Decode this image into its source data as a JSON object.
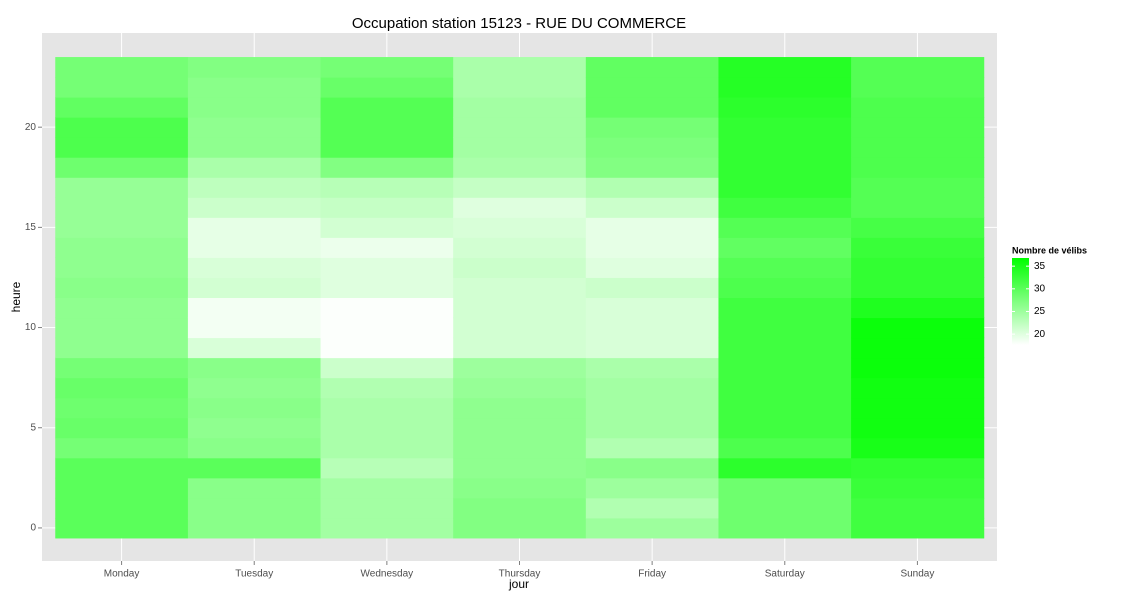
{
  "chart_data": {
    "type": "heatmap",
    "title": "Occupation station 15123 - RUE DU COMMERCE",
    "x_label": "jour",
    "y_label": "heure",
    "categories": [
      "Monday",
      "Tuesday",
      "Wednesday",
      "Thursday",
      "Friday",
      "Saturday",
      "Sunday"
    ],
    "y": [
      0,
      1,
      2,
      3,
      4,
      5,
      6,
      7,
      8,
      9,
      10,
      11,
      12,
      13,
      14,
      15,
      16,
      17,
      18,
      19,
      20,
      21,
      22,
      23
    ],
    "ylim": [
      -1.65,
      24.7
    ],
    "yticks": [
      0,
      5,
      10,
      15,
      20
    ],
    "grid": true,
    "z": [
      [
        30,
        30,
        30,
        30,
        28,
        29,
        28.5,
        29,
        28,
        26,
        26,
        26,
        26.5,
        26,
        26,
        25.5,
        25.5,
        25.5,
        28.5,
        31,
        31,
        29.5,
        28,
        28
      ],
      [
        26.5,
        26.5,
        26.5,
        30,
        26.5,
        26,
        26.5,
        26,
        26.5,
        20.5,
        18.5,
        18.5,
        21,
        20.5,
        19.5,
        19.5,
        21.5,
        22.5,
        24,
        26,
        26,
        26.5,
        26.5,
        27
      ],
      [
        24.5,
        24.5,
        24.5,
        23,
        24,
        24,
        24,
        23.5,
        21.5,
        17.8,
        17.8,
        17.8,
        20,
        20,
        19,
        21,
        22,
        23,
        27,
        30.5,
        30.5,
        30.5,
        29,
        28
      ],
      [
        27,
        27,
        26.5,
        26,
        26,
        26,
        26,
        25.5,
        25,
        21,
        21,
        21,
        21,
        21.5,
        21,
        20.5,
        20,
        22,
        24,
        24.5,
        24.5,
        24.5,
        24,
        24
      ],
      [
        25,
        23.5,
        25,
        26.5,
        23.5,
        24.5,
        24.5,
        24.5,
        24,
        20.5,
        20.5,
        20.5,
        21.5,
        20,
        19.5,
        19.5,
        21.5,
        23.5,
        27,
        27.5,
        28,
        29.5,
        29.5,
        29.5
      ],
      [
        28.5,
        28.5,
        28.5,
        33.5,
        31,
        32,
        32,
        32,
        32,
        32,
        32,
        32,
        31,
        30.5,
        29.5,
        30.5,
        32,
        33,
        33,
        33,
        33,
        33.5,
        34,
        34
      ],
      [
        32,
        32,
        32.5,
        33,
        35,
        35.5,
        35.5,
        35.5,
        36,
        36,
        36,
        34.5,
        33,
        33,
        32.5,
        31.5,
        30.5,
        30.5,
        31,
        31,
        31,
        31,
        30.5,
        30.5
      ]
    ],
    "legend_title": "Nombre de vélibs",
    "legend": "right",
    "clim": [
      17.6,
      36.8
    ],
    "cticks": [
      20,
      25,
      30,
      35
    ],
    "low_color": "#ffffff",
    "high_color": "#00ff00",
    "panel_color": "#e5e5e5"
  }
}
